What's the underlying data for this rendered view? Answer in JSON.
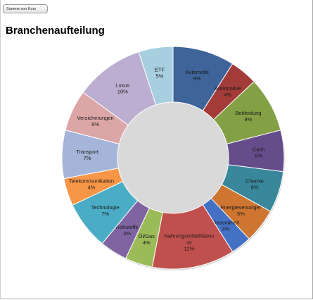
{
  "field_button": {
    "label": "Summe von Kurs"
  },
  "chart_data": {
    "type": "pie",
    "variant": "donut",
    "title": "Branchenaufteilung",
    "legend": "none",
    "slices": [
      {
        "name": "Automobil",
        "label": [
          "Automobil",
          "9%"
        ],
        "value": 9,
        "color": "#3e6499"
      },
      {
        "name": "Automotive",
        "label": [
          "Automotive",
          "4%"
        ],
        "value": 4,
        "color": "#a33b39"
      },
      {
        "name": "Bekleidung",
        "label": [
          "Bekleidung",
          "8%"
        ],
        "value": 8,
        "color": "#84a044"
      },
      {
        "name": "Cash",
        "label": [
          "Cash",
          "6%"
        ],
        "value": 6,
        "color": "#654c8a"
      },
      {
        "name": "Chemie",
        "label": [
          "Chemie",
          "6%"
        ],
        "value": 6,
        "color": "#38879b"
      },
      {
        "name": "Energieversorger",
        "label": [
          "Energieversorger",
          "5%"
        ],
        "value": 5,
        "color": "#cd7531"
      },
      {
        "name": "Gesundheit",
        "label": [
          "Gesundheit",
          "3%"
        ],
        "value": 3,
        "color": "#4471c4"
      },
      {
        "name": "Nahrungsmittel/Genuss",
        "label": [
          "Nahrungsmittel/Genu",
          "ss",
          "12%"
        ],
        "value": 12,
        "color": "#c0504d"
      },
      {
        "name": "Öl/Gas",
        "label": [
          "Öl/Gas",
          "4%"
        ],
        "value": 4,
        "color": "#9bbb59"
      },
      {
        "name": "Rohstoffe",
        "label": [
          "Rohstoffe",
          "4%"
        ],
        "value": 4,
        "color": "#8064a2"
      },
      {
        "name": "Technologie",
        "label": [
          "Technologie",
          "7%"
        ],
        "value": 7,
        "color": "#4bacc6"
      },
      {
        "name": "Telekommunikation",
        "label": [
          "Telekommunikation",
          "4%"
        ],
        "value": 4,
        "color": "#f79646"
      },
      {
        "name": "Transport",
        "label": [
          "Transport",
          "7%"
        ],
        "value": 7,
        "color": "#a5b5d9"
      },
      {
        "name": "Versicherungen",
        "label": [
          "Versicherungen",
          "6%"
        ],
        "value": 6,
        "color": "#dba6a5"
      },
      {
        "name": "Luxus",
        "label": [
          "Luxus",
          "10%"
        ],
        "value": 10,
        "color": "#bcaed0"
      },
      {
        "name": "ETF",
        "label": [
          "ETF",
          "5%"
        ],
        "value": 5,
        "color": "#a7cfe0"
      }
    ]
  }
}
